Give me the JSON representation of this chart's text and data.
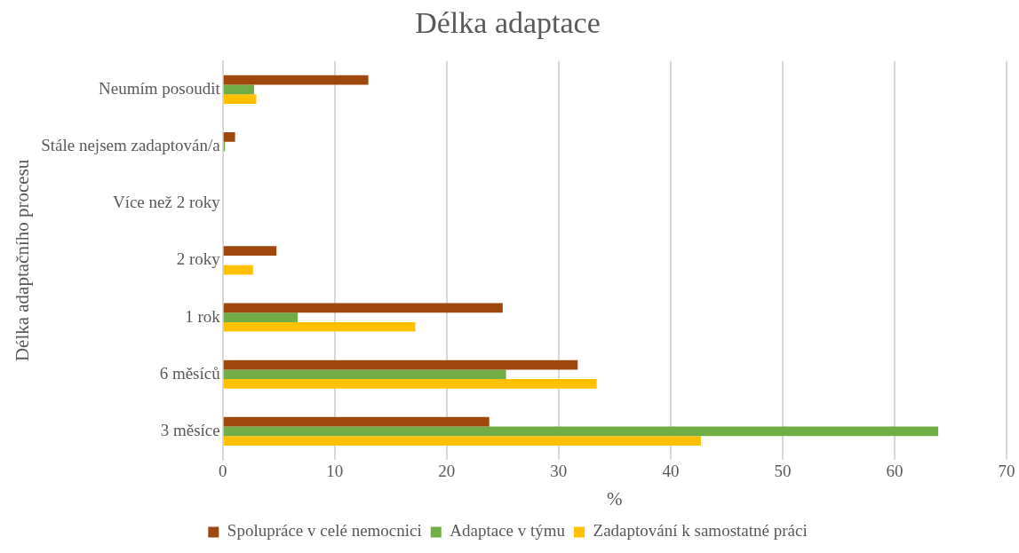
{
  "chart_data": {
    "type": "bar",
    "orientation": "horizontal",
    "title": "Délka adaptace",
    "xlabel": "%",
    "ylabel": "Délka adaptačního procesu",
    "categories": [
      "Neumím posoudit",
      "Stále nejsem zadaptován/a",
      "Více než 2 roky",
      "2 roky",
      "1 rok",
      "6 měsíců",
      "3 měsíce"
    ],
    "series": [
      {
        "name": "Spolupráce v celé nemocnici",
        "color": "#9e480e",
        "values": [
          13.0,
          1.1,
          0,
          4.8,
          25.0,
          31.7,
          23.8
        ]
      },
      {
        "name": "Adaptace v týmu",
        "color": "#70ad47",
        "values": [
          2.8,
          0.2,
          0,
          0,
          6.7,
          25.3,
          63.9
        ]
      },
      {
        "name": "Zadaptování k samostatné práci",
        "color": "#ffc000",
        "values": [
          3.0,
          0,
          0,
          2.7,
          17.2,
          33.4,
          42.7
        ]
      }
    ],
    "xlim": [
      0,
      70
    ],
    "xticks": [
      0,
      10,
      20,
      30,
      40,
      50,
      60,
      70
    ],
    "grid": "x",
    "legend": "bottom"
  }
}
